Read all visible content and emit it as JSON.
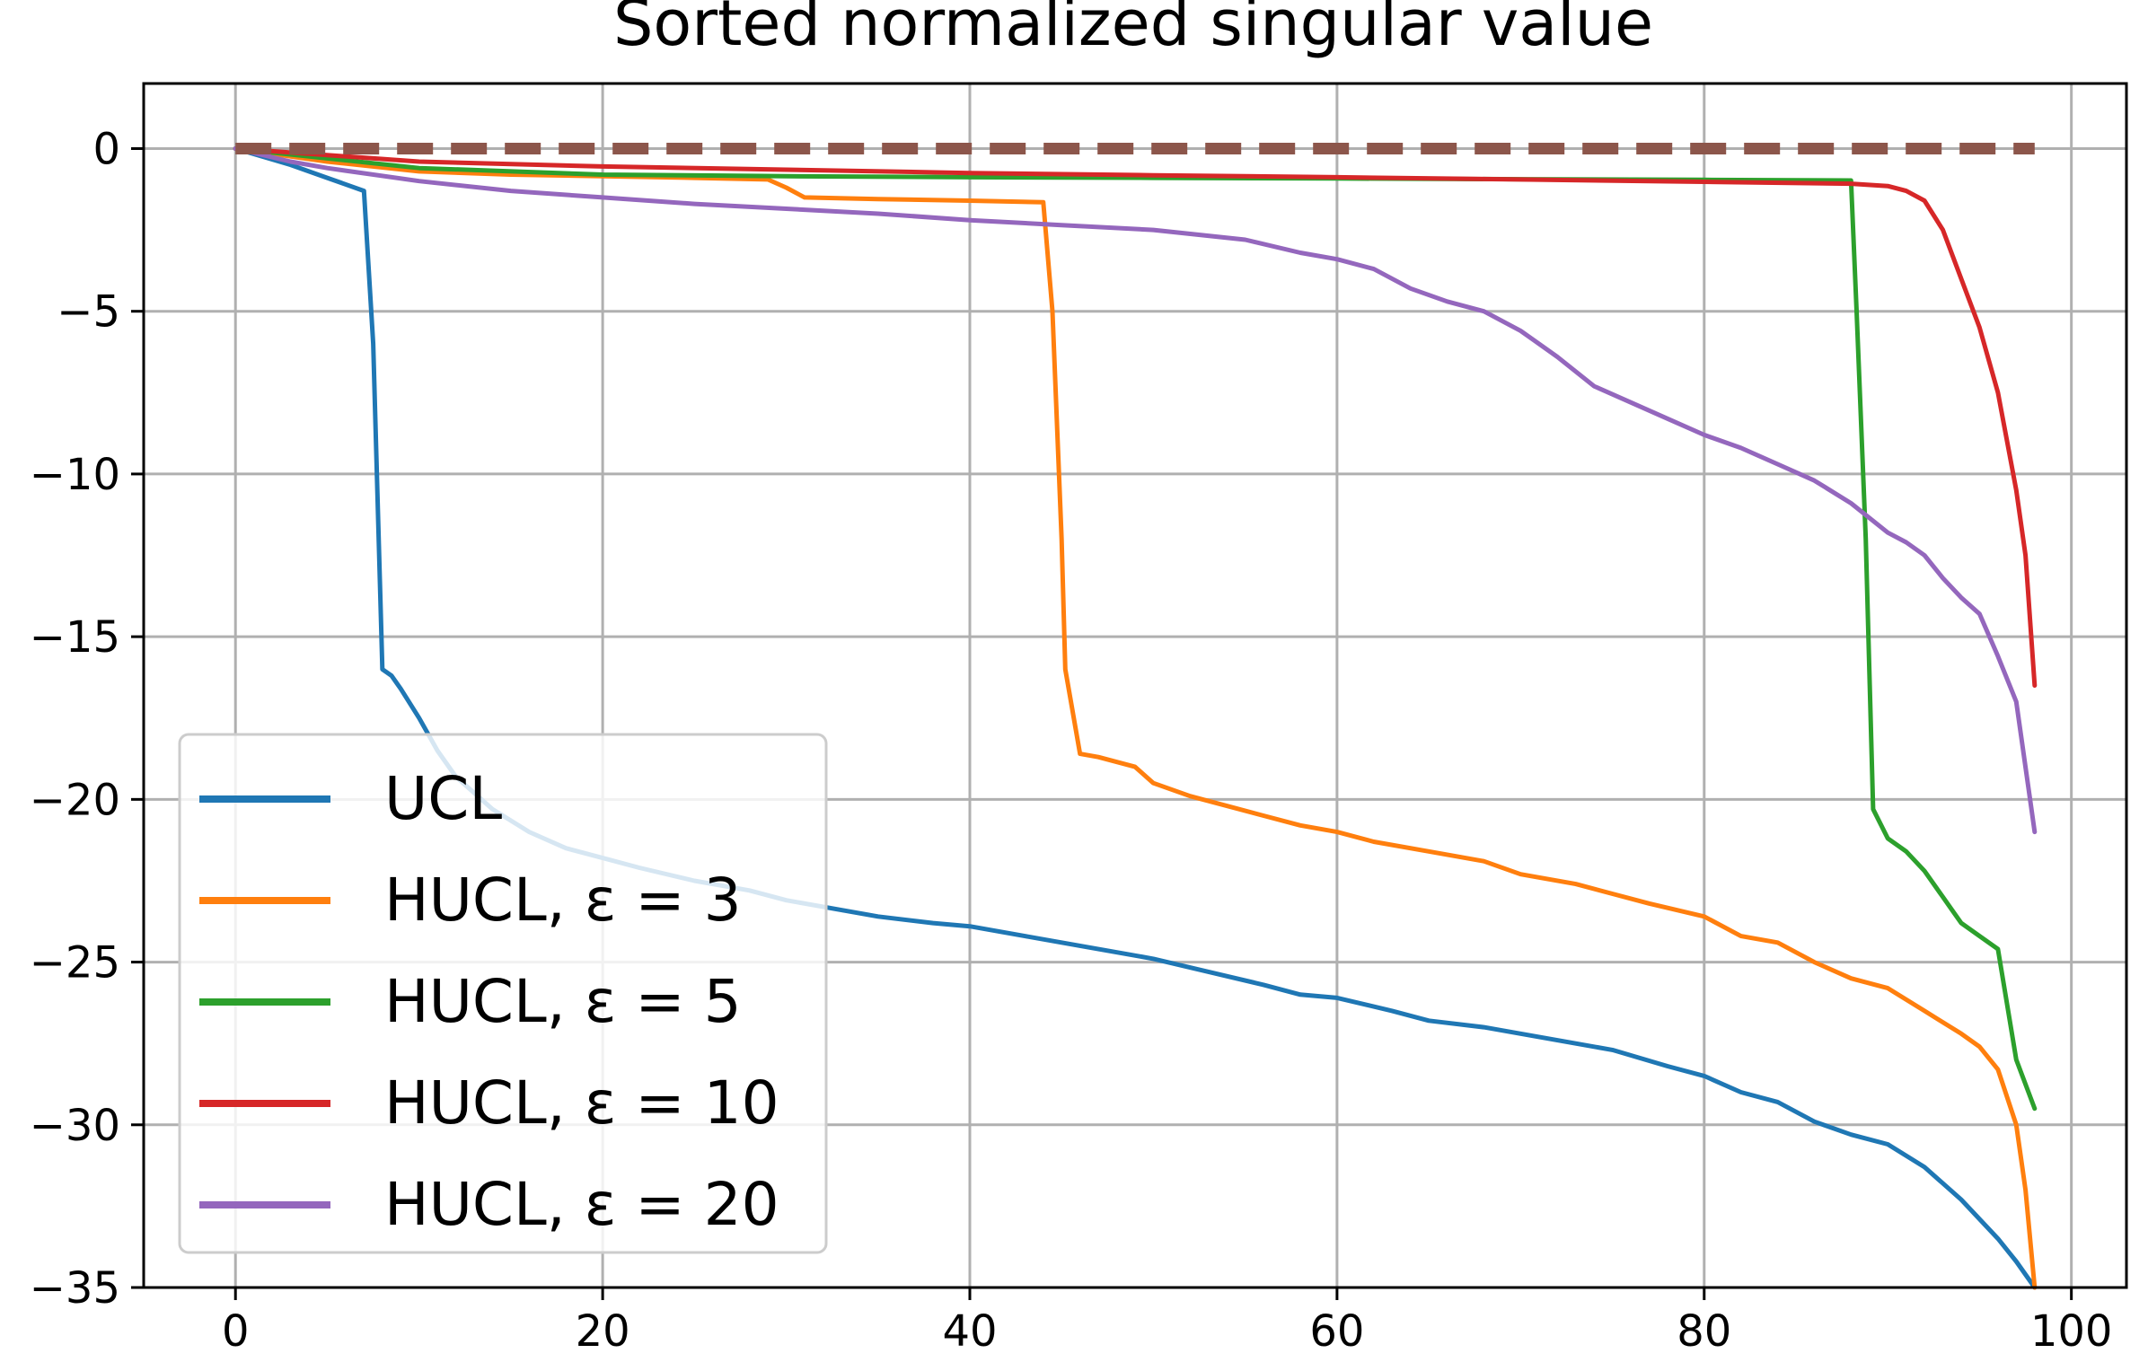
{
  "chart_data": {
    "type": "line",
    "title": "Sorted normalized singular value",
    "xlabel": "",
    "ylabel": "",
    "xlim": [
      -5,
      103
    ],
    "ylim": [
      -35,
      2
    ],
    "xticks": [
      0,
      20,
      40,
      60,
      80,
      100
    ],
    "yticks": [
      0,
      -5,
      -10,
      -15,
      -20,
      -25,
      -30,
      -35
    ],
    "xtick_labels": [
      "0",
      "20",
      "40",
      "60",
      "80",
      "100"
    ],
    "ytick_labels": [
      "0",
      "−5",
      "−10",
      "−15",
      "−20",
      "−25",
      "−30",
      "−35"
    ],
    "grid": true,
    "legend_position": "lower-left",
    "series": [
      {
        "name": "UCL",
        "color": "#1f77b4",
        "style": "solid",
        "points": [
          [
            0,
            0
          ],
          [
            3,
            -0.5
          ],
          [
            5,
            -0.9
          ],
          [
            7,
            -1.3
          ],
          [
            7.5,
            -6
          ],
          [
            8,
            -16
          ],
          [
            8.5,
            -16.2
          ],
          [
            9,
            -16.6
          ],
          [
            10,
            -17.5
          ],
          [
            11,
            -18.5
          ],
          [
            12,
            -19.3
          ],
          [
            14,
            -20.3
          ],
          [
            16,
            -21
          ],
          [
            18,
            -21.5
          ],
          [
            20,
            -21.8
          ],
          [
            22,
            -22.1
          ],
          [
            25,
            -22.5
          ],
          [
            28,
            -22.8
          ],
          [
            30,
            -23.1
          ],
          [
            33,
            -23.4
          ],
          [
            35,
            -23.6
          ],
          [
            38,
            -23.8
          ],
          [
            40,
            -23.9
          ],
          [
            43,
            -24.2
          ],
          [
            46,
            -24.5
          ],
          [
            50,
            -24.9
          ],
          [
            53,
            -25.3
          ],
          [
            56,
            -25.7
          ],
          [
            58,
            -26
          ],
          [
            60,
            -26.1
          ],
          [
            63,
            -26.5
          ],
          [
            65,
            -26.8
          ],
          [
            68,
            -27
          ],
          [
            70,
            -27.2
          ],
          [
            73,
            -27.5
          ],
          [
            75,
            -27.7
          ],
          [
            78,
            -28.2
          ],
          [
            80,
            -28.5
          ],
          [
            82,
            -29
          ],
          [
            84,
            -29.3
          ],
          [
            86,
            -29.9
          ],
          [
            88,
            -30.3
          ],
          [
            90,
            -30.6
          ],
          [
            92,
            -31.3
          ],
          [
            94,
            -32.3
          ],
          [
            96,
            -33.5
          ],
          [
            97,
            -34.2
          ],
          [
            98,
            -35
          ]
        ]
      },
      {
        "name": "HUCL, ε = 3",
        "color": "#ff7f0e",
        "style": "solid",
        "points": [
          [
            0,
            0
          ],
          [
            5,
            -0.4
          ],
          [
            10,
            -0.7
          ],
          [
            15,
            -0.8
          ],
          [
            20,
            -0.85
          ],
          [
            25,
            -0.9
          ],
          [
            29,
            -0.95
          ],
          [
            30,
            -1.2
          ],
          [
            31,
            -1.5
          ],
          [
            35,
            -1.55
          ],
          [
            40,
            -1.6
          ],
          [
            44,
            -1.65
          ],
          [
            44.5,
            -5
          ],
          [
            45,
            -12
          ],
          [
            45.2,
            -16
          ],
          [
            46,
            -18.6
          ],
          [
            47,
            -18.7
          ],
          [
            49,
            -19
          ],
          [
            50,
            -19.5
          ],
          [
            52,
            -19.9
          ],
          [
            54,
            -20.2
          ],
          [
            56,
            -20.5
          ],
          [
            58,
            -20.8
          ],
          [
            60,
            -21
          ],
          [
            62,
            -21.3
          ],
          [
            65,
            -21.6
          ],
          [
            68,
            -21.9
          ],
          [
            70,
            -22.3
          ],
          [
            73,
            -22.6
          ],
          [
            75,
            -22.9
          ],
          [
            77,
            -23.2
          ],
          [
            80,
            -23.6
          ],
          [
            82,
            -24.2
          ],
          [
            84,
            -24.4
          ],
          [
            86,
            -25
          ],
          [
            88,
            -25.5
          ],
          [
            90,
            -25.8
          ],
          [
            92,
            -26.5
          ],
          [
            94,
            -27.2
          ],
          [
            95,
            -27.6
          ],
          [
            96,
            -28.3
          ],
          [
            97,
            -30
          ],
          [
            97.5,
            -32
          ],
          [
            98,
            -35
          ]
        ]
      },
      {
        "name": "HUCL, ε = 5",
        "color": "#2ca02c",
        "style": "solid",
        "points": [
          [
            0,
            0
          ],
          [
            5,
            -0.3
          ],
          [
            10,
            -0.6
          ],
          [
            20,
            -0.8
          ],
          [
            30,
            -0.85
          ],
          [
            40,
            -0.88
          ],
          [
            50,
            -0.9
          ],
          [
            60,
            -0.92
          ],
          [
            70,
            -0.94
          ],
          [
            80,
            -0.96
          ],
          [
            88,
            -0.98
          ],
          [
            88.3,
            -5
          ],
          [
            88.8,
            -12
          ],
          [
            89.2,
            -20.3
          ],
          [
            90,
            -21.2
          ],
          [
            91,
            -21.6
          ],
          [
            92,
            -22.2
          ],
          [
            93,
            -23
          ],
          [
            94,
            -23.8
          ],
          [
            95,
            -24.2
          ],
          [
            96,
            -24.6
          ],
          [
            97,
            -28
          ],
          [
            98,
            -29.5
          ]
        ]
      },
      {
        "name": "HUCL, ε = 10",
        "color": "#d62728",
        "style": "solid",
        "points": [
          [
            0,
            0
          ],
          [
            10,
            -0.4
          ],
          [
            20,
            -0.55
          ],
          [
            30,
            -0.65
          ],
          [
            40,
            -0.75
          ],
          [
            50,
            -0.82
          ],
          [
            60,
            -0.88
          ],
          [
            70,
            -0.95
          ],
          [
            80,
            -1.02
          ],
          [
            88,
            -1.08
          ],
          [
            90,
            -1.15
          ],
          [
            91,
            -1.3
          ],
          [
            92,
            -1.6
          ],
          [
            93,
            -2.5
          ],
          [
            94,
            -4
          ],
          [
            95,
            -5.5
          ],
          [
            96,
            -7.5
          ],
          [
            97,
            -10.5
          ],
          [
            97.5,
            -12.5
          ],
          [
            98,
            -16.5
          ]
        ]
      },
      {
        "name": "",
        "color": "#9467bd",
        "style": "solid",
        "points": [
          [
            0,
            0
          ],
          [
            3,
            -0.4
          ],
          [
            5,
            -0.6
          ],
          [
            10,
            -1
          ],
          [
            15,
            -1.3
          ],
          [
            20,
            -1.5
          ],
          [
            25,
            -1.7
          ],
          [
            30,
            -1.85
          ],
          [
            35,
            -2
          ],
          [
            40,
            -2.2
          ],
          [
            45,
            -2.35
          ],
          [
            50,
            -2.5
          ],
          [
            55,
            -2.8
          ],
          [
            58,
            -3.2
          ],
          [
            60,
            -3.4
          ],
          [
            62,
            -3.7
          ],
          [
            64,
            -4.3
          ],
          [
            66,
            -4.7
          ],
          [
            68,
            -5
          ],
          [
            70,
            -5.6
          ],
          [
            72,
            -6.4
          ],
          [
            74,
            -7.3
          ],
          [
            76,
            -7.8
          ],
          [
            78,
            -8.3
          ],
          [
            80,
            -8.8
          ],
          [
            82,
            -9.2
          ],
          [
            84,
            -9.7
          ],
          [
            86,
            -10.2
          ],
          [
            88,
            -10.9
          ],
          [
            90,
            -11.8
          ],
          [
            91,
            -12.1
          ],
          [
            92,
            -12.5
          ],
          [
            93,
            -13.2
          ],
          [
            94,
            -13.8
          ],
          [
            95,
            -14.3
          ],
          [
            96,
            -15.6
          ],
          [
            97,
            -17
          ],
          [
            98,
            -21
          ]
        ]
      },
      {
        "name": "",
        "color": "#8c564b",
        "style": "dashed",
        "points": [
          [
            0,
            0
          ],
          [
            98,
            0
          ]
        ]
      }
    ],
    "legend": [
      {
        "label": "UCL",
        "color": "#1f77b4"
      },
      {
        "label": "HUCL, ε = 3",
        "color": "#ff7f0e"
      },
      {
        "label": "HUCL, ε = 5",
        "color": "#2ca02c"
      },
      {
        "label": "HUCL, ε = 10",
        "color": "#d62728"
      },
      {
        "label": "HUCL, ε = 20",
        "color": "#9467bd"
      }
    ]
  }
}
